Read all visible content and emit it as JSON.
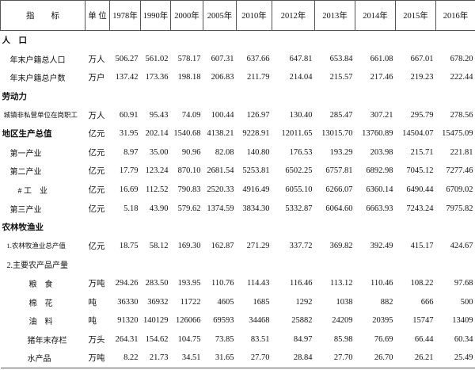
{
  "table": {
    "header": [
      "指　　标",
      "单 位",
      "1978年",
      "1990年",
      "2000年",
      "2005年",
      "2010年",
      "2012年",
      "2013年",
      "2014年",
      "2015年",
      "2016年"
    ],
    "rows": [
      {
        "heading": "人　口"
      },
      {
        "label": "年末户籍总人口",
        "unit": "万人",
        "values": [
          "506.27",
          "561.02",
          "578.17",
          "607.31",
          "637.66",
          "647.81",
          "653.84",
          "661.08",
          "667.01",
          "678.20"
        ]
      },
      {
        "label": "年末户籍总户数",
        "unit": "万户",
        "values": [
          "137.42",
          "173.36",
          "198.18",
          "206.83",
          "211.79",
          "214.04",
          "215.57",
          "217.46",
          "219.23",
          "222.44"
        ]
      },
      {
        "heading": "劳动力"
      },
      {
        "label": "城镇非私营单位在岗职工",
        "unit": "万人",
        "values": [
          "60.91",
          "95.43",
          "74.09",
          "100.44",
          "126.97",
          "130.40",
          "285.47",
          "307.21",
          "295.79",
          "278.56"
        ]
      },
      {
        "heading": "地区生产总值",
        "unit": "亿元",
        "values": [
          "31.95",
          "202.14",
          "1540.68",
          "4138.21",
          "9228.91",
          "12011.65",
          "13015.70",
          "13760.89",
          "14504.07",
          "15475.09"
        ]
      },
      {
        "label": "第一产业",
        "unit": "亿元",
        "values": [
          "8.97",
          "35.00",
          "90.96",
          "82.08",
          "140.80",
          "176.53",
          "193.29",
          "203.98",
          "215.71",
          "221.81"
        ]
      },
      {
        "label": "第二产业",
        "unit": "亿元",
        "values": [
          "17.79",
          "123.24",
          "870.10",
          "2681.54",
          "5253.81",
          "6502.25",
          "6757.81",
          "6892.98",
          "7045.12",
          "7277.46"
        ]
      },
      {
        "label": "# 工　业",
        "unit": "亿元",
        "values": [
          "16.69",
          "112.52",
          "790.83",
          "2520.33",
          "4916.49",
          "6055.10",
          "6266.07",
          "6360.14",
          "6490.44",
          "6709.02"
        ]
      },
      {
        "label": "第三产业",
        "unit": "亿元",
        "values": [
          "5.18",
          "43.90",
          "579.62",
          "1374.59",
          "3834.30",
          "5332.87",
          "6064.60",
          "6663.93",
          "7243.24",
          "7975.82"
        ]
      },
      {
        "heading": "农林牧渔业"
      },
      {
        "label": "1.农林牧渔业总产值",
        "unit": "亿元",
        "values": [
          "18.75",
          "58.12",
          "169.30",
          "162.87",
          "271.29",
          "337.72",
          "369.82",
          "392.49",
          "415.17",
          "424.67"
        ]
      },
      {
        "label": "2.主要农产品产量"
      },
      {
        "label": "粮　食",
        "unit": "万吨",
        "values": [
          "294.26",
          "283.50",
          "193.95",
          "110.76",
          "114.43",
          "116.46",
          "113.12",
          "110.46",
          "108.22",
          "97.68"
        ]
      },
      {
        "label": "棉　花",
        "unit": "吨",
        "values": [
          "36330",
          "36932",
          "11722",
          "4605",
          "1685",
          "1292",
          "1038",
          "882",
          "666",
          "500"
        ]
      },
      {
        "label": "油　料",
        "unit": "吨",
        "values": [
          "91320",
          "140129",
          "126066",
          "69593",
          "34468",
          "25882",
          "24209",
          "20395",
          "15747",
          "13409"
        ]
      },
      {
        "label": "猪年末存栏",
        "unit": "万头",
        "values": [
          "264.31",
          "154.62",
          "104.75",
          "73.85",
          "83.51",
          "84.97",
          "85.98",
          "76.69",
          "66.44",
          "60.34"
        ]
      },
      {
        "label": "水产品",
        "unit": "万吨",
        "values": [
          "8.22",
          "21.73",
          "34.51",
          "31.65",
          "27.70",
          "28.84",
          "27.70",
          "26.70",
          "26.21",
          "25.49"
        ]
      }
    ]
  }
}
